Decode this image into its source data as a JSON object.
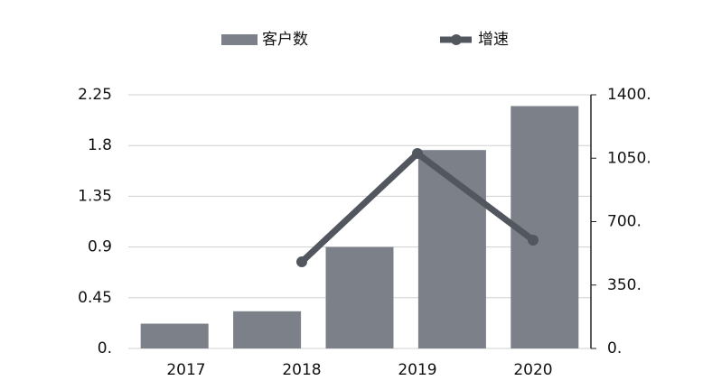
{
  "chart_data": [
    {
      "type": "bar",
      "categories": [
        null,
        null,
        null,
        null,
        null
      ],
      "series": [
        {
          "name": "客户数",
          "color": "#7b8089",
          "values": [
            0.22,
            0.33,
            0.9,
            1.76,
            2.15
          ]
        }
      ],
      "ylim": [
        0,
        2.25
      ],
      "yticks": [
        {
          "value": 0,
          "label": "0."
        },
        0.45,
        0.9,
        1.35,
        1.8,
        2.25
      ],
      "grid": true
    },
    {
      "type": "line",
      "categories": [
        "2017",
        "2018",
        "2019",
        "2020"
      ],
      "series": [
        {
          "name": "增速",
          "color": "#52565e",
          "axis": "y2",
          "values": [
            null,
            478,
            1076,
            598
          ]
        }
      ],
      "y2lim": [
        0,
        1400
      ],
      "y2ticks": [
        {
          "value": 0,
          "label": "0."
        },
        {
          "value": 350,
          "label": "350."
        },
        {
          "value": 700,
          "label": "700."
        },
        {
          "value": 1050,
          "label": "1050."
        },
        {
          "value": 1400,
          "label": "1400."
        }
      ]
    }
  ]
}
